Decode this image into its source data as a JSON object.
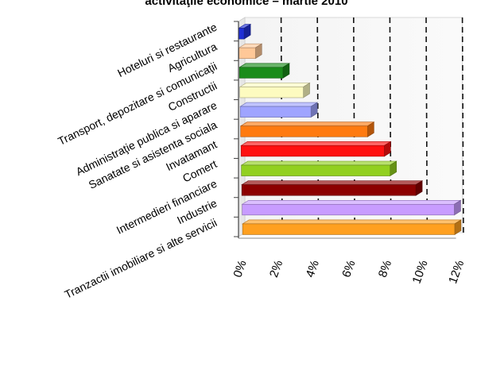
{
  "chart_data": {
    "type": "bar",
    "orientation": "horizontal",
    "title": "activităţile economice – martie 2010",
    "xlabel": "",
    "ylabel": "",
    "xlim": [
      0,
      12
    ],
    "x_tick_labels": [
      "0%",
      "2%",
      "4%",
      "6%",
      "8%",
      "10%",
      "12%"
    ],
    "grid": "vertical dashed",
    "legend": "none",
    "categories": [
      "Hoteluri si restaurante",
      "Agricultura",
      "Transport, depozitare si comunicaţii",
      "Constructii",
      "Administraţie publica si aparare",
      "Sanatate si asistenta sociala",
      "Invatamant",
      "Comert",
      "Intermedieri financiare",
      "Industrie",
      "Tranzactii imobiliare si alte servicii"
    ],
    "values": [
      0.3,
      0.9,
      2.4,
      3.5,
      3.9,
      7.0,
      7.9,
      8.2,
      9.6,
      11.7,
      11.7
    ],
    "colors": [
      "#1f2fd6",
      "#ffc898",
      "#1a8c1a",
      "#fdfbc0",
      "#9fa4ff",
      "#ff7a10",
      "#ff1010",
      "#92d020",
      "#8c0000",
      "#c89cff",
      "#ffa020"
    ]
  }
}
